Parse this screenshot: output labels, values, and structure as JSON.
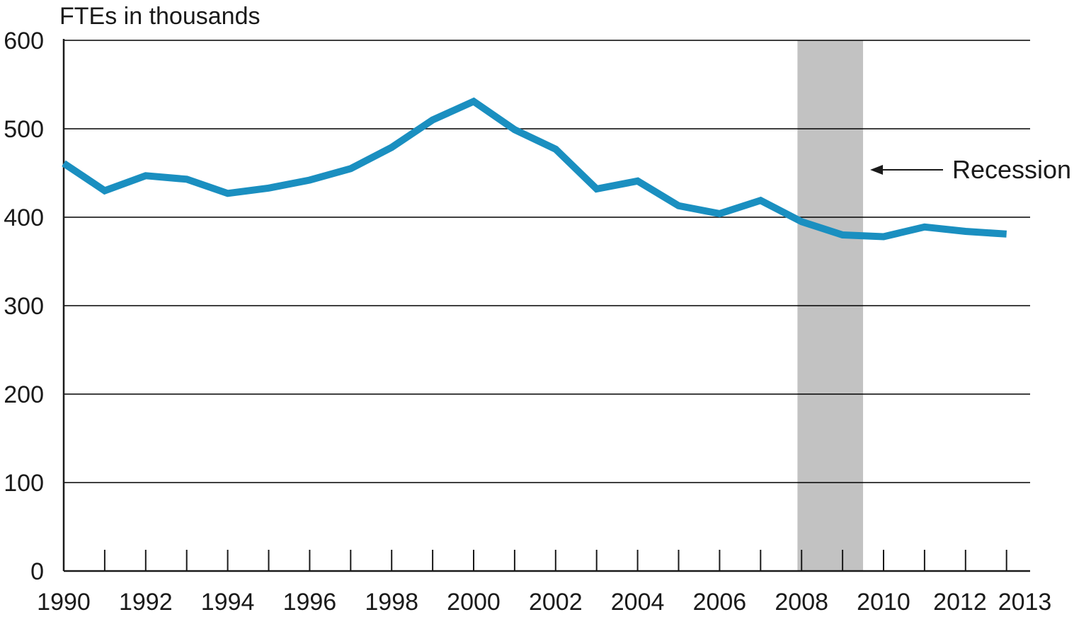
{
  "chart_data": {
    "type": "line",
    "ylabel": "FTEs in thousands",
    "ylim": [
      0,
      600
    ],
    "y_ticks": [
      0,
      100,
      200,
      300,
      400,
      500,
      600
    ],
    "x_range": [
      1990,
      2013.5
    ],
    "x_tick_labels": [
      1990,
      1992,
      1994,
      1996,
      1998,
      2000,
      2002,
      2004,
      2006,
      2008,
      2010,
      2012,
      2013
    ],
    "grid": "horizontal",
    "series": [
      {
        "color": "#1a8fc0",
        "x": [
          1990,
          1991,
          1992,
          1993,
          1994,
          1995,
          1996,
          1997,
          1998,
          1999,
          2000,
          2001,
          2002,
          2003,
          2004,
          2005,
          2006,
          2007,
          2008,
          2009,
          2010,
          2011,
          2012,
          2013
        ],
        "values": [
          461,
          430,
          447,
          443,
          427,
          433,
          442,
          455,
          479,
          510,
          531,
          499,
          477,
          432,
          441,
          413,
          404,
          419,
          395,
          380,
          378,
          389,
          384,
          381
        ]
      }
    ],
    "recession_band": {
      "start": 2007.9,
      "end": 2009.5,
      "color": "#c2c2c2"
    },
    "annotation": {
      "text": "Recession",
      "arrow": "left"
    },
    "colors": {
      "line": "#1a8fc0",
      "grid": "#000000",
      "axis": "#1a1a1a"
    }
  }
}
